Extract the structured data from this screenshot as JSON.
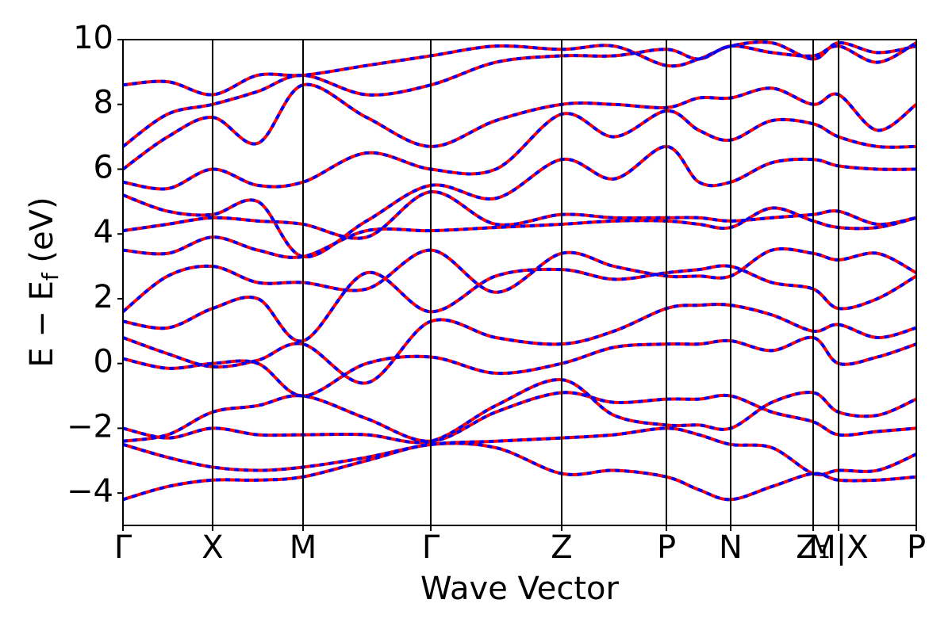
{
  "chart_data": {
    "type": "line",
    "xlabel": "Wave Vector",
    "ylabel": [
      "E − E",
      "f",
      " (eV)"
    ],
    "xlim": [
      0,
      10
    ],
    "ylim": [
      -5,
      10
    ],
    "xticks": [
      {
        "value": 0,
        "label": "Γ"
      },
      {
        "value": 1.13,
        "label": "X"
      },
      {
        "value": 2.27,
        "label": "M"
      },
      {
        "value": 3.88,
        "label": "Γ"
      },
      {
        "value": 5.53,
        "label": "Z"
      },
      {
        "value": 6.85,
        "label": "P"
      },
      {
        "value": 7.66,
        "label": "N"
      },
      {
        "value": 8.7,
        "label": "Z₁"
      },
      {
        "value": 9.02,
        "label": "M|X"
      },
      {
        "value": 10,
        "label": "P"
      }
    ],
    "yticks": [
      {
        "value": -4,
        "label": "−4"
      },
      {
        "value": -2,
        "label": "−2"
      },
      0,
      2,
      4,
      6,
      8,
      10
    ],
    "xgrid": true,
    "styles": [
      {
        "color": "#ff0000",
        "dash": "solid"
      },
      {
        "color": "#0000ff",
        "dash": "dashed"
      }
    ],
    "x": [
      0,
      0.565,
      1.13,
      1.7,
      2.27,
      3.07,
      3.88,
      4.7,
      5.53,
      6.19,
      6.85,
      7.26,
      7.66,
      8.18,
      8.7,
      9.02,
      9.51,
      10
    ],
    "bands": [
      [
        -4.2,
        -3.8,
        -3.6,
        -3.6,
        -3.5,
        -3.0,
        -2.5,
        -2.6,
        -3.4,
        -3.3,
        -3.5,
        -3.9,
        -4.2,
        -3.8,
        -3.4,
        -3.6,
        -3.6,
        -3.5
      ],
      [
        -2.5,
        -2.9,
        -3.2,
        -3.3,
        -3.2,
        -2.9,
        -2.5,
        -2.4,
        -2.3,
        -2.2,
        -2.0,
        -2.2,
        -2.5,
        -2.6,
        -3.4,
        -3.3,
        -3.3,
        -2.8
      ],
      [
        -2.4,
        -2.2,
        -1.5,
        -1.3,
        -1.0,
        -1.7,
        -2.4,
        -1.5,
        -0.9,
        -1.2,
        -1.1,
        -1.1,
        -1.0,
        -1.5,
        -1.8,
        -2.2,
        -2.1,
        -2.0
      ],
      [
        -2.0,
        -2.3,
        -2.0,
        -2.2,
        -2.2,
        -2.2,
        -2.4,
        -1.3,
        -0.5,
        -1.6,
        -1.9,
        -1.9,
        -2.0,
        -1.2,
        -0.9,
        -1.5,
        -1.6,
        -1.1
      ],
      [
        0.15,
        -0.15,
        0.0,
        0.0,
        -1.0,
        0.0,
        0.2,
        -0.3,
        0.0,
        0.5,
        0.6,
        0.6,
        0.7,
        0.4,
        0.8,
        0.0,
        0.2,
        0.6
      ],
      [
        0.8,
        0.3,
        -0.1,
        0.1,
        0.6,
        -0.6,
        1.3,
        0.8,
        0.6,
        1.0,
        1.7,
        1.8,
        1.8,
        1.5,
        1.0,
        1.2,
        0.8,
        1.1
      ],
      [
        1.3,
        1.1,
        1.7,
        2.0,
        0.7,
        2.8,
        1.6,
        2.7,
        2.9,
        2.6,
        2.8,
        2.9,
        3.0,
        2.5,
        2.3,
        1.7,
        2.0,
        2.7
      ],
      [
        1.6,
        2.7,
        3.0,
        2.5,
        2.5,
        2.3,
        3.5,
        2.2,
        3.4,
        3.0,
        2.7,
        2.7,
        2.7,
        3.5,
        3.4,
        3.2,
        3.4,
        2.8
      ],
      [
        3.5,
        3.4,
        3.9,
        3.5,
        3.3,
        4.1,
        4.1,
        4.2,
        4.3,
        4.4,
        4.4,
        4.3,
        4.2,
        4.8,
        4.4,
        4.2,
        4.2,
        4.5
      ],
      [
        4.1,
        4.3,
        4.5,
        4.4,
        4.3,
        3.9,
        5.3,
        4.3,
        4.6,
        4.5,
        4.5,
        4.5,
        4.4,
        4.5,
        4.6,
        4.7,
        4.3,
        4.5
      ],
      [
        5.2,
        4.7,
        4.6,
        5.0,
        3.3,
        4.4,
        5.5,
        5.1,
        6.3,
        5.7,
        6.7,
        5.6,
        5.6,
        6.2,
        6.3,
        6.1,
        6.0,
        6.0
      ],
      [
        5.6,
        5.4,
        6.0,
        5.5,
        5.6,
        6.5,
        6.0,
        6.0,
        7.7,
        7.0,
        7.8,
        7.2,
        6.9,
        7.5,
        7.4,
        7.0,
        6.7,
        6.7
      ],
      [
        6.0,
        7.0,
        7.6,
        6.8,
        8.6,
        7.6,
        6.7,
        7.5,
        8.0,
        8.0,
        7.9,
        8.2,
        8.2,
        8.5,
        8.0,
        8.3,
        7.2,
        8.0
      ],
      [
        6.7,
        7.7,
        8.0,
        8.4,
        8.9,
        8.3,
        8.6,
        9.3,
        9.5,
        9.5,
        9.7,
        9.4,
        9.8,
        9.6,
        9.5,
        9.8,
        9.3,
        9.9
      ],
      [
        8.6,
        8.7,
        8.3,
        8.9,
        8.9,
        9.2,
        9.5,
        9.8,
        9.7,
        9.8,
        9.2,
        9.4,
        9.8,
        9.9,
        9.4,
        9.9,
        9.6,
        9.8
      ]
    ]
  }
}
